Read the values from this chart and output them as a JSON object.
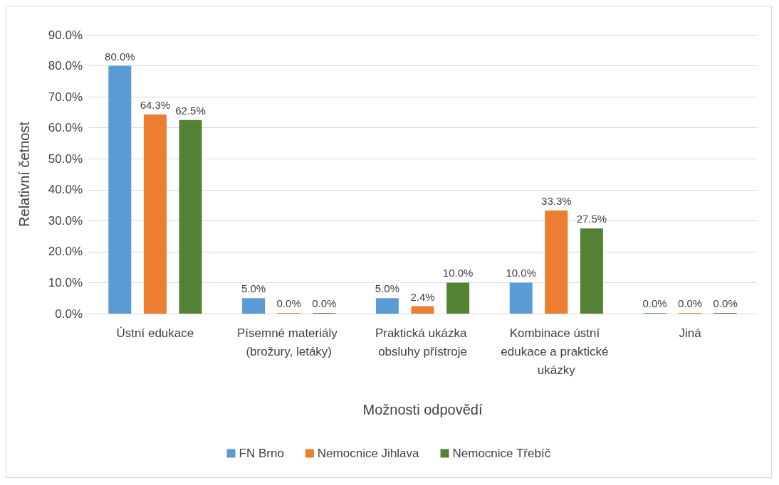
{
  "chart_data": {
    "type": "bar",
    "xlabel": "Možnosti odpovědí",
    "ylabel": "Relativní četnost",
    "categories": [
      "Ústní edukace",
      "Písemné materiály (brožury, letáky)",
      "Praktická ukázka obsluhy přístroje",
      "Kombinace ústní edukace a praktické ukázky",
      "Jiná"
    ],
    "series": [
      {
        "name": "FN Brno",
        "color": "#5b9bd5",
        "values": [
          80,
          5,
          5,
          10,
          0
        ],
        "value_labels": [
          "80.0%",
          "5.0%",
          "5.0%",
          "10.0%",
          "0.0%"
        ]
      },
      {
        "name": "Nemocnice Jihlava",
        "color": "#ed7d31",
        "values": [
          64.3,
          0,
          2.4,
          33.3,
          0
        ],
        "value_labels": [
          "64.3%",
          "0.0%",
          "2.4%",
          "33.3%",
          "0.0%"
        ]
      },
      {
        "name": "Nemocnice Třebíč",
        "color": "#548235",
        "values": [
          62.5,
          0,
          10,
          27.5,
          0
        ],
        "value_labels": [
          "62.5%",
          "0.0%",
          "10.0%",
          "27.5%",
          "0.0%"
        ]
      }
    ],
    "ylim": [
      0,
      90
    ],
    "yticks": [
      {
        "value": 0,
        "label": "0.0%"
      },
      {
        "value": 10,
        "label": "10.0%"
      },
      {
        "value": 20,
        "label": "20.0%"
      },
      {
        "value": 30,
        "label": "30.0%"
      },
      {
        "value": 40,
        "label": "40.0%"
      },
      {
        "value": 50,
        "label": "50.0%"
      },
      {
        "value": 60,
        "label": "60.0%"
      },
      {
        "value": 70,
        "label": "70.0%"
      },
      {
        "value": 80,
        "label": "80.0%"
      },
      {
        "value": 90,
        "label": "90.0%"
      }
    ],
    "grid": "y",
    "legend": "bottom"
  }
}
